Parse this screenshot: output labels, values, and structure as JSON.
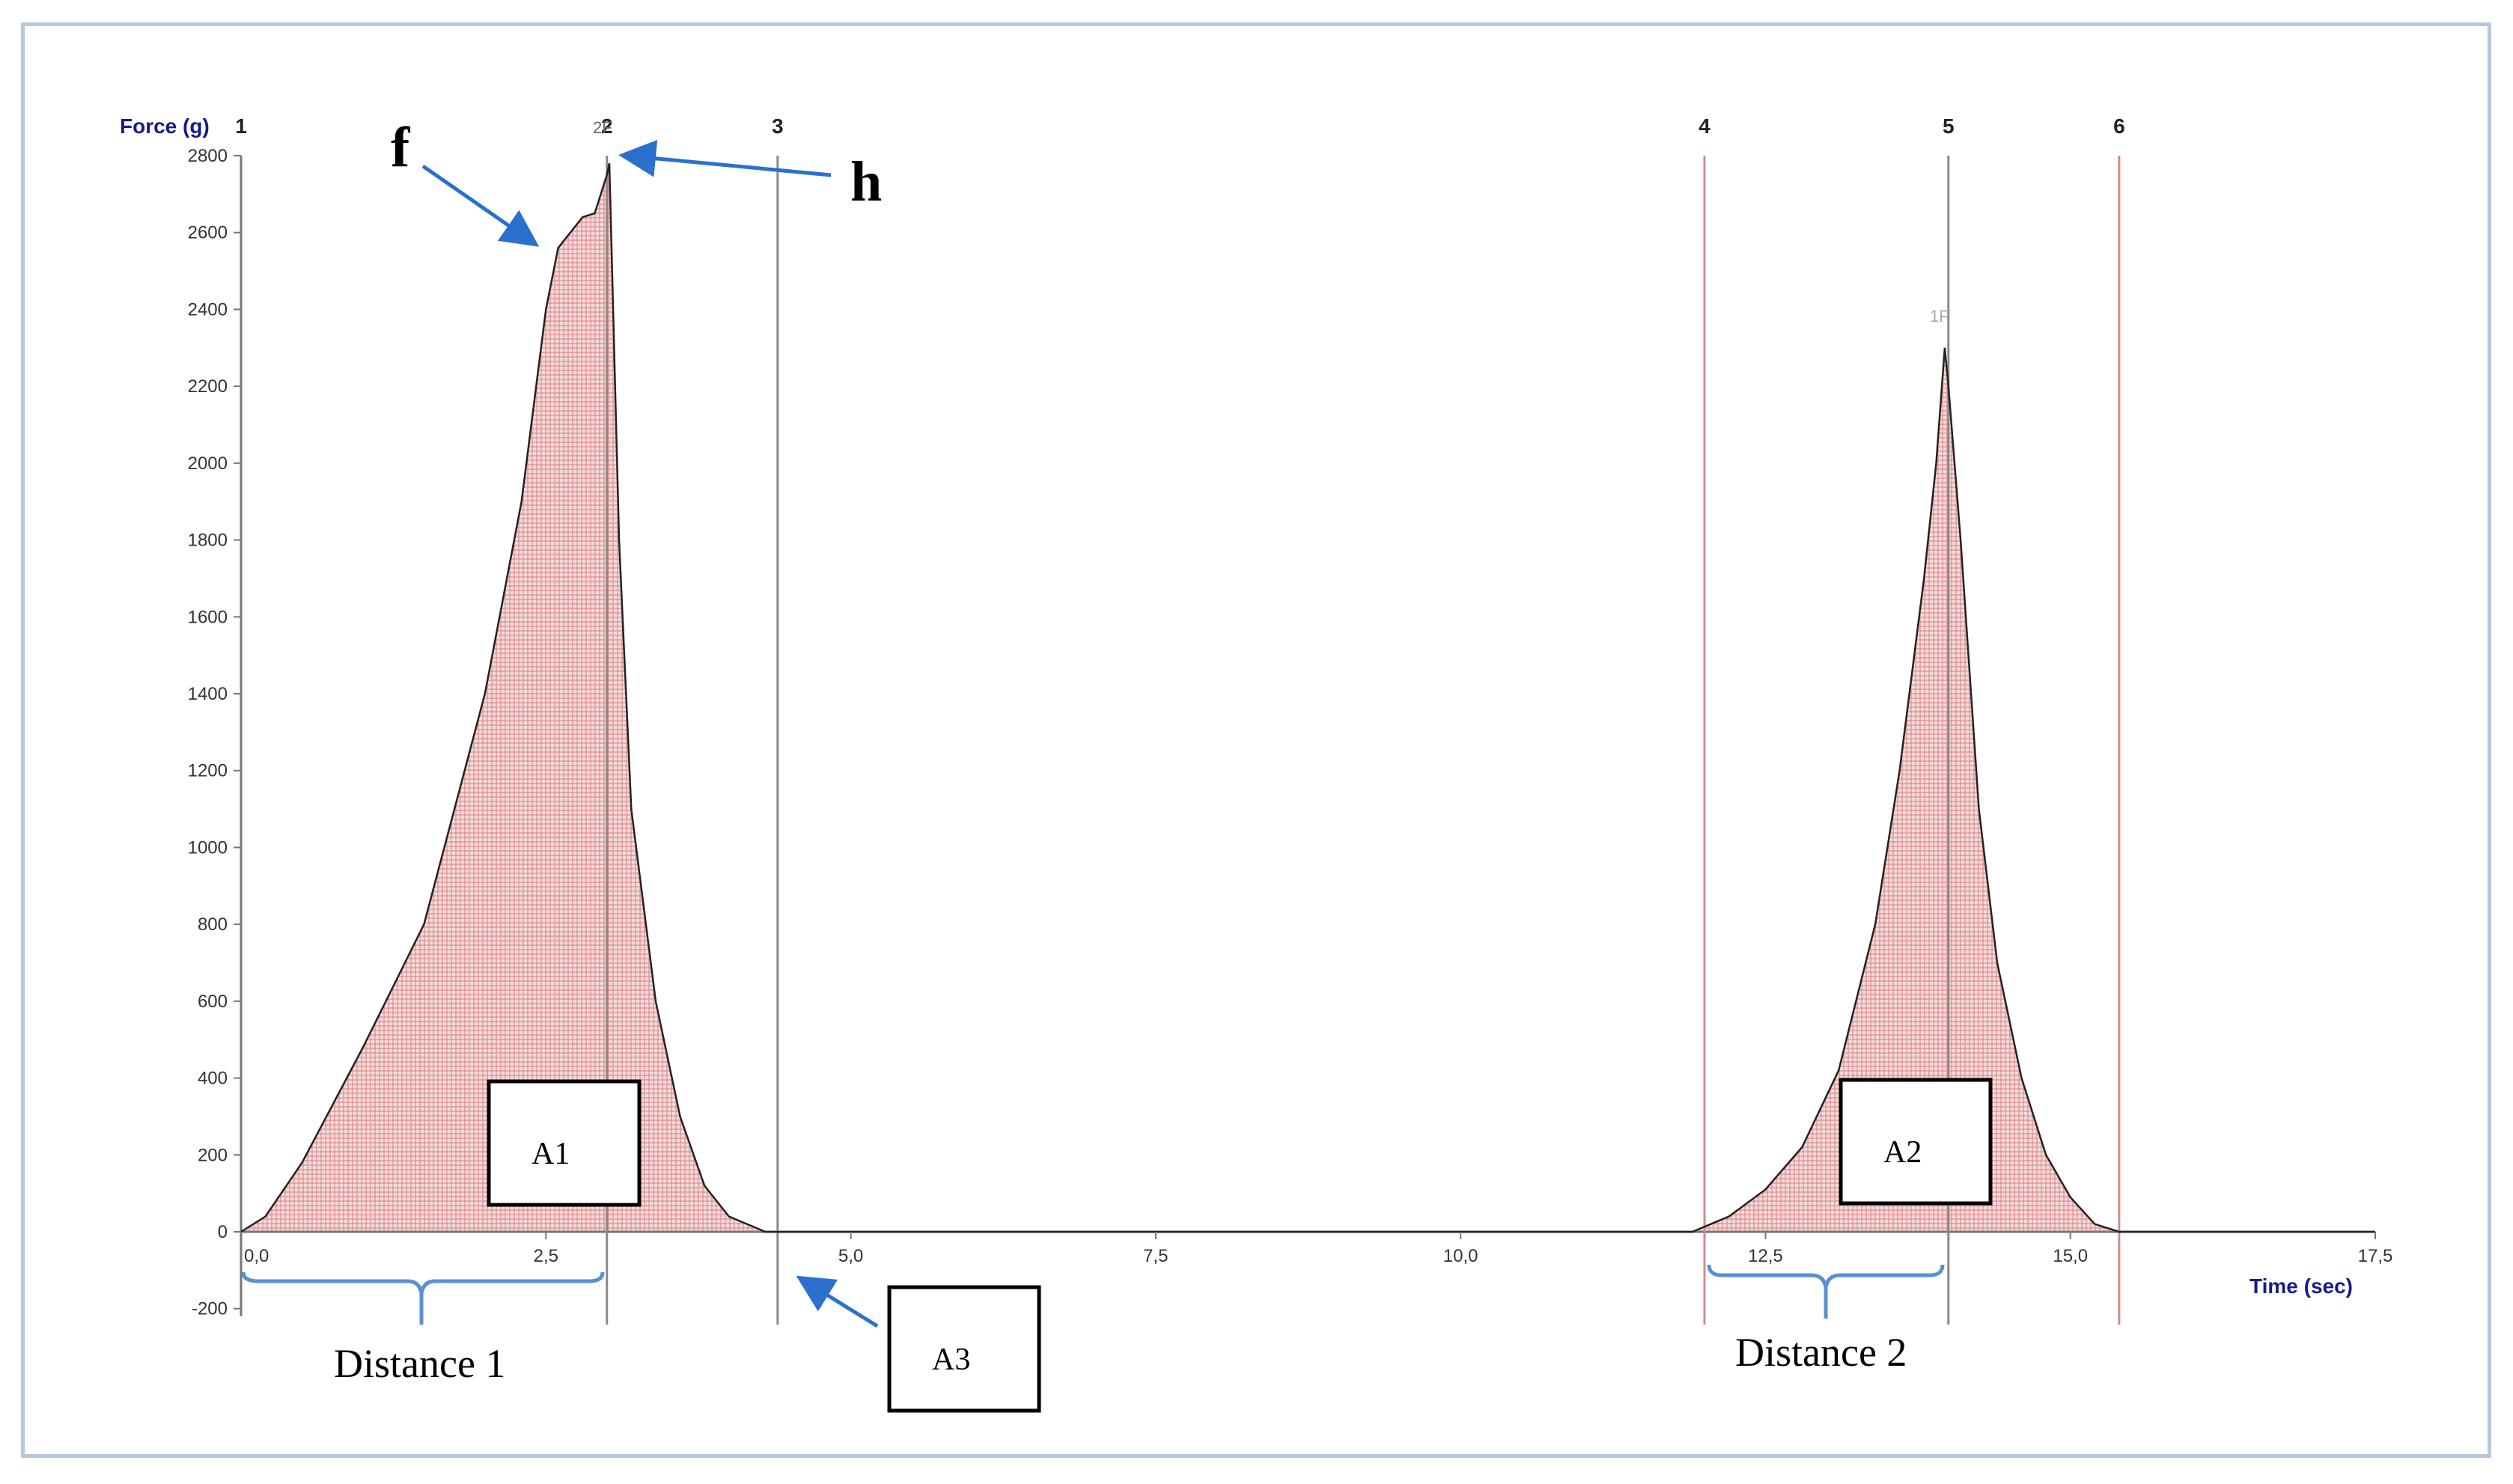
{
  "chart_data": {
    "type": "area",
    "ylabel": "Force (g)",
    "xlabel": "Time (sec)",
    "ylim": [
      -200,
      2800
    ],
    "xlim": [
      0,
      17.5
    ],
    "y_ticks": [
      "2800",
      "2600",
      "2400",
      "2200",
      "2000",
      "1800",
      "1600",
      "1400",
      "1200",
      "1000",
      "800",
      "600",
      "400",
      "200",
      "0",
      "-200"
    ],
    "y_tick_values": [
      2800,
      2600,
      2400,
      2200,
      2000,
      1800,
      1600,
      1400,
      1200,
      1000,
      800,
      600,
      400,
      200,
      0,
      -200
    ],
    "x_ticks": [
      "0,0",
      "2,5",
      "5,0",
      "7,5",
      "10,0",
      "12,5",
      "15,0",
      "17,5"
    ],
    "x_tick_values": [
      0,
      2.5,
      5,
      7.5,
      10,
      12.5,
      15,
      17.5
    ],
    "series": [
      {
        "values": [
          [
            0,
            0
          ],
          [
            0.2,
            40
          ],
          [
            0.5,
            180
          ],
          [
            1.0,
            480
          ],
          [
            1.5,
            800
          ],
          [
            2.0,
            1400
          ],
          [
            2.3,
            1900
          ],
          [
            2.5,
            2400
          ],
          [
            2.6,
            2560
          ],
          [
            2.7,
            2600
          ],
          [
            2.8,
            2640
          ],
          [
            2.9,
            2650
          ],
          [
            3.0,
            2750
          ],
          [
            3.02,
            2780
          ],
          [
            3.1,
            1800
          ],
          [
            3.2,
            1100
          ],
          [
            3.4,
            600
          ],
          [
            3.6,
            300
          ],
          [
            3.8,
            120
          ],
          [
            4.0,
            40
          ],
          [
            4.3,
            0
          ],
          [
            5,
            0
          ],
          [
            7.5,
            0
          ],
          [
            10,
            0
          ],
          [
            11.9,
            0
          ],
          [
            12.2,
            40
          ],
          [
            12.5,
            110
          ],
          [
            12.8,
            220
          ],
          [
            13.1,
            420
          ],
          [
            13.4,
            800
          ],
          [
            13.6,
            1200
          ],
          [
            13.8,
            1700
          ],
          [
            13.9,
            2000
          ],
          [
            13.97,
            2300
          ],
          [
            14.0,
            2200
          ],
          [
            14.1,
            1800
          ],
          [
            14.25,
            1100
          ],
          [
            14.4,
            700
          ],
          [
            14.6,
            400
          ],
          [
            14.8,
            200
          ],
          [
            15.0,
            90
          ],
          [
            15.2,
            20
          ],
          [
            15.4,
            0
          ],
          [
            17.5,
            0
          ]
        ]
      }
    ],
    "markers": [
      {
        "label": "1",
        "x": 0
      },
      {
        "label": "2",
        "x": 3.0
      },
      {
        "label": "3",
        "x": 4.4
      },
      {
        "label": "4",
        "x": 12.0
      },
      {
        "label": "5",
        "x": 14.0
      },
      {
        "label": "6",
        "x": 15.4
      }
    ],
    "annotations": {
      "f": "f",
      "h": "h",
      "a1": "A1",
      "a2": "A2",
      "a3": "A3",
      "distance1": "Distance 1",
      "distance2": "Distance 2",
      "peak_label_2": "2F",
      "peak_label_5": "1F"
    },
    "colors": {
      "fill": "#f3c9c9",
      "hatch": "#d98e8e",
      "curve": "#222222",
      "marker_dark": "#8a8a8a",
      "marker_red": "#d28a8a",
      "arrow": "#2b6fcf",
      "brace": "#5b8fd6",
      "axis_title": "#1a1a8c"
    },
    "grid": false
  }
}
